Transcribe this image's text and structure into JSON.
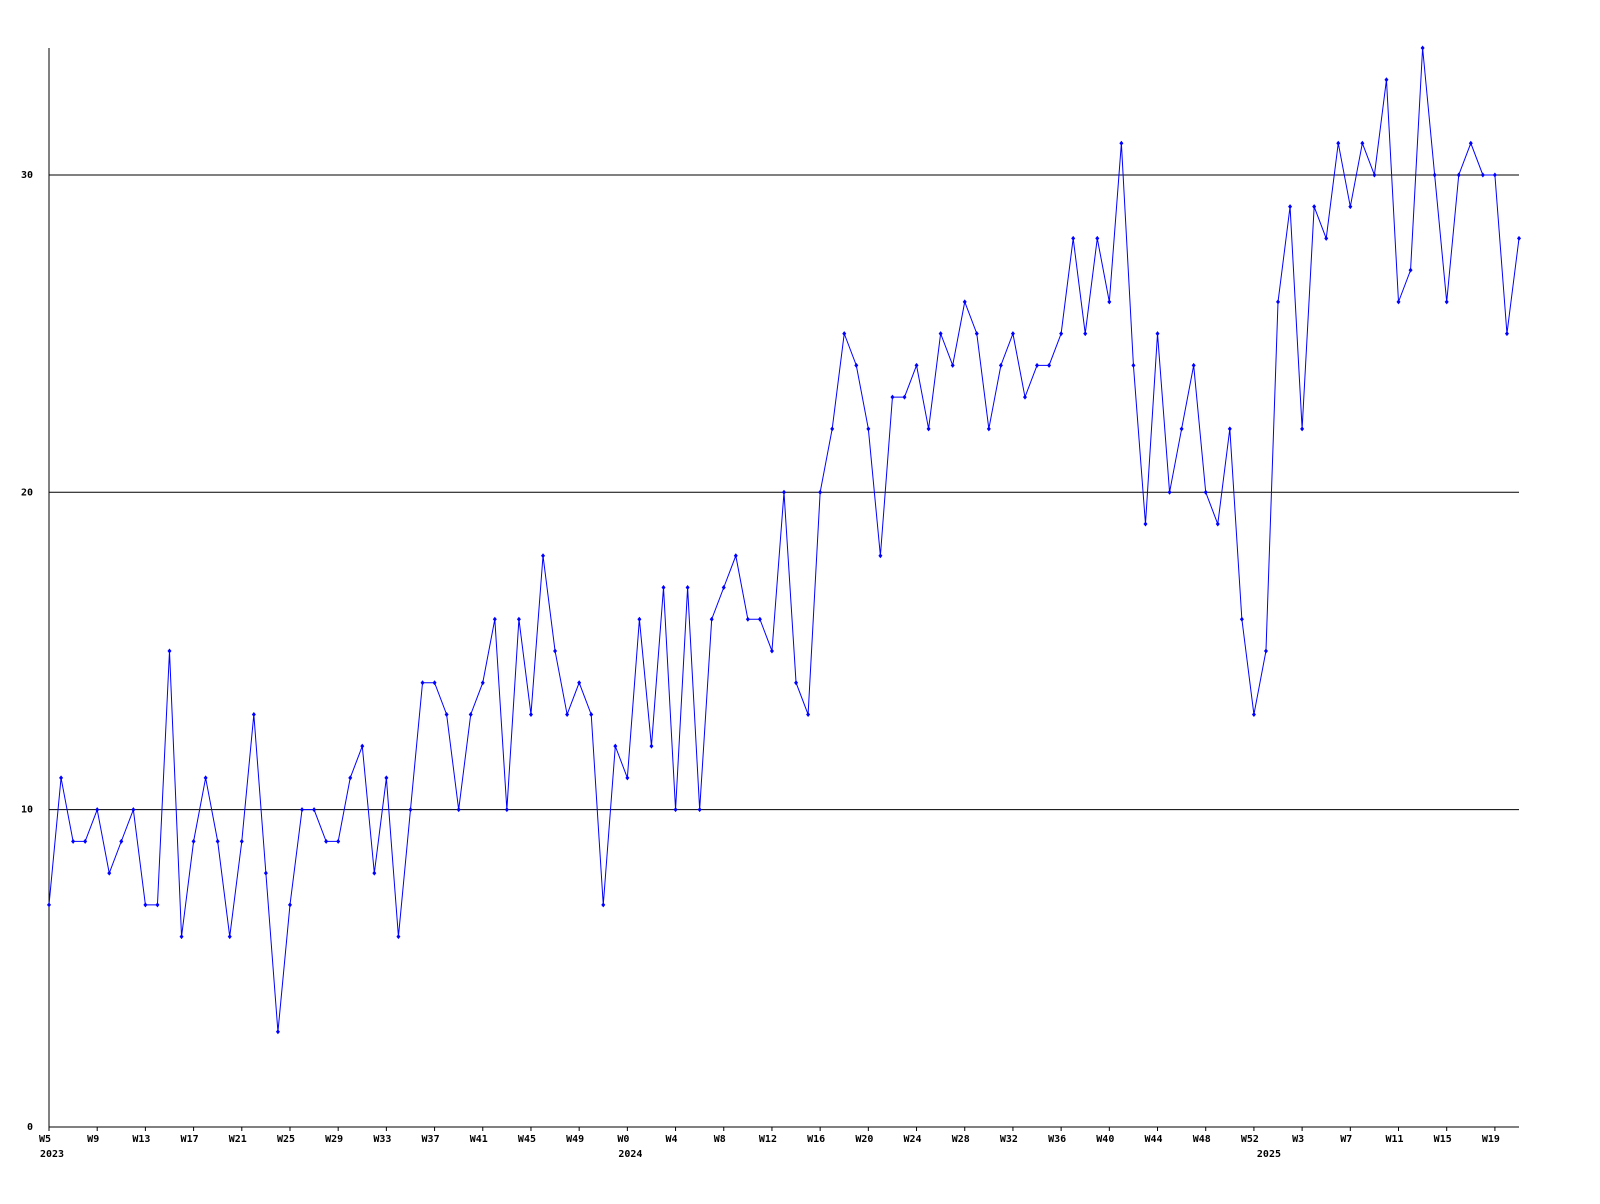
{
  "chart_data": {
    "type": "line",
    "categories": [
      "W5",
      null,
      null,
      null,
      "W9",
      null,
      null,
      null,
      "W13",
      null,
      null,
      null,
      "W17",
      null,
      null,
      null,
      "W21",
      null,
      null,
      null,
      "W25",
      null,
      null,
      null,
      "W29",
      null,
      null,
      null,
      "W33",
      null,
      null,
      null,
      "W37",
      null,
      null,
      null,
      "W41",
      null,
      null,
      null,
      "W45",
      null,
      null,
      null,
      "W49",
      null,
      null,
      null,
      "W0",
      null,
      null,
      null,
      "W4",
      null,
      null,
      null,
      "W8",
      null,
      null,
      null,
      "W12",
      null,
      null,
      null,
      "W16",
      null,
      null,
      null,
      "W20",
      null,
      null,
      null,
      "W24",
      null,
      null,
      null,
      "W28",
      null,
      null,
      null,
      "W32",
      null,
      null,
      null,
      "W36",
      null,
      null,
      null,
      "W40",
      null,
      null,
      null,
      "W44",
      null,
      null,
      null,
      "W48",
      null,
      null,
      null,
      "W52",
      null,
      null,
      null,
      "W3",
      null,
      null,
      null,
      "W7",
      null,
      null,
      null,
      "W11",
      null,
      null,
      null,
      "W15",
      null,
      null,
      null,
      "W19",
      null,
      null
    ],
    "years": [
      "2023",
      null,
      null,
      null,
      null,
      null,
      null,
      null,
      null,
      null,
      null,
      null,
      null,
      null,
      null,
      null,
      null,
      null,
      null,
      null,
      null,
      null,
      null,
      null,
      null,
      null,
      null,
      null,
      null,
      null,
      null,
      null,
      null,
      null,
      null,
      null,
      null,
      null,
      null,
      null,
      null,
      null,
      null,
      null,
      null,
      null,
      null,
      null,
      "2024",
      null,
      null,
      null,
      null,
      null,
      null,
      null,
      null,
      null,
      null,
      null,
      null,
      null,
      null,
      null,
      null,
      null,
      null,
      null,
      null,
      null,
      null,
      null,
      null,
      null,
      null,
      null,
      null,
      null,
      null,
      null,
      null,
      null,
      null,
      null,
      null,
      null,
      null,
      null,
      null,
      null,
      null,
      null,
      null,
      null,
      null,
      null,
      null,
      null,
      null,
      null,
      null,
      "2025",
      null,
      null,
      null,
      null,
      null,
      null,
      null,
      null,
      null,
      null,
      null,
      null,
      null,
      null,
      null,
      null,
      null,
      null,
      null,
      null,
      null
    ],
    "series": [
      {
        "color": "#0000ff",
        "values": [
          7,
          11,
          9,
          9,
          10,
          8,
          9,
          10,
          7,
          7,
          15,
          6,
          9,
          11,
          9,
          6,
          9,
          13,
          8,
          3,
          7,
          10,
          10,
          9,
          9,
          11,
          12,
          8,
          11,
          6,
          10,
          14,
          14,
          13,
          10,
          13,
          14,
          16,
          10,
          16,
          13,
          18,
          15,
          13,
          14,
          13,
          7,
          12,
          11,
          16,
          12,
          17,
          10,
          17,
          10,
          16,
          17,
          18,
          16,
          16,
          15,
          20,
          14,
          13,
          20,
          22,
          25,
          24,
          22,
          18,
          23,
          23,
          24,
          22,
          25,
          24,
          26,
          25,
          22,
          24,
          25,
          23,
          24,
          24,
          25,
          28,
          25,
          28,
          26,
          31,
          24,
          19,
          25,
          20,
          22,
          24,
          20,
          19,
          22,
          16,
          13,
          15,
          26,
          29,
          22,
          29,
          28,
          31,
          29,
          31,
          30,
          33,
          26,
          27,
          34,
          30,
          26,
          30,
          31,
          30,
          30,
          25,
          28
        ]
      }
    ],
    "ylim": [
      0,
      34
    ],
    "yticks": [
      0,
      10,
      20,
      30
    ],
    "grid": true
  }
}
